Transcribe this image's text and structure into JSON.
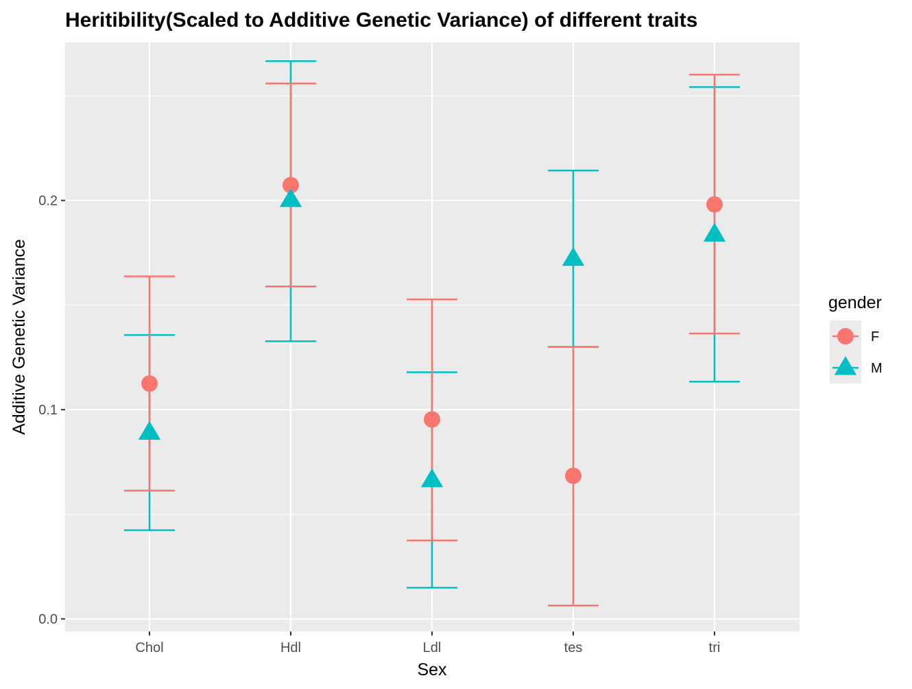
{
  "chart_data": {
    "type": "scatter",
    "title": "Heritibility(Scaled to Additive Genetic Variance) of different traits",
    "xlabel": "Sex",
    "ylabel": "Additive Genetic Variance",
    "categories": [
      "Chol",
      "Hdl",
      "Ldl",
      "tes",
      "tri"
    ],
    "ylim": [
      -0.006,
      0.2755
    ],
    "yticks": [
      0.0,
      0.1,
      0.2
    ],
    "ytick_labels": [
      "0.0",
      "0.1",
      "0.2"
    ],
    "grid": true,
    "legend": {
      "title": "gender",
      "position": "right"
    },
    "series": [
      {
        "name": "F",
        "color": "#F8766D",
        "marker": "circle",
        "values": [
          0.1125,
          0.2073,
          0.0953,
          0.0684,
          0.1981
        ],
        "lower": [
          0.0613,
          0.1589,
          0.0375,
          0.0064,
          0.1364
        ],
        "upper": [
          0.1637,
          0.2559,
          0.1527,
          0.13,
          0.2601
        ]
      },
      {
        "name": "M",
        "color": "#00BFC4",
        "marker": "triangle",
        "values": [
          0.0891,
          0.2003,
          0.0664,
          0.1722,
          0.1838
        ],
        "lower": [
          0.0424,
          0.1327,
          0.0149,
          0.13,
          0.1134
        ],
        "upper": [
          0.1357,
          0.2666,
          0.1179,
          0.2143,
          0.2542
        ]
      }
    ]
  }
}
